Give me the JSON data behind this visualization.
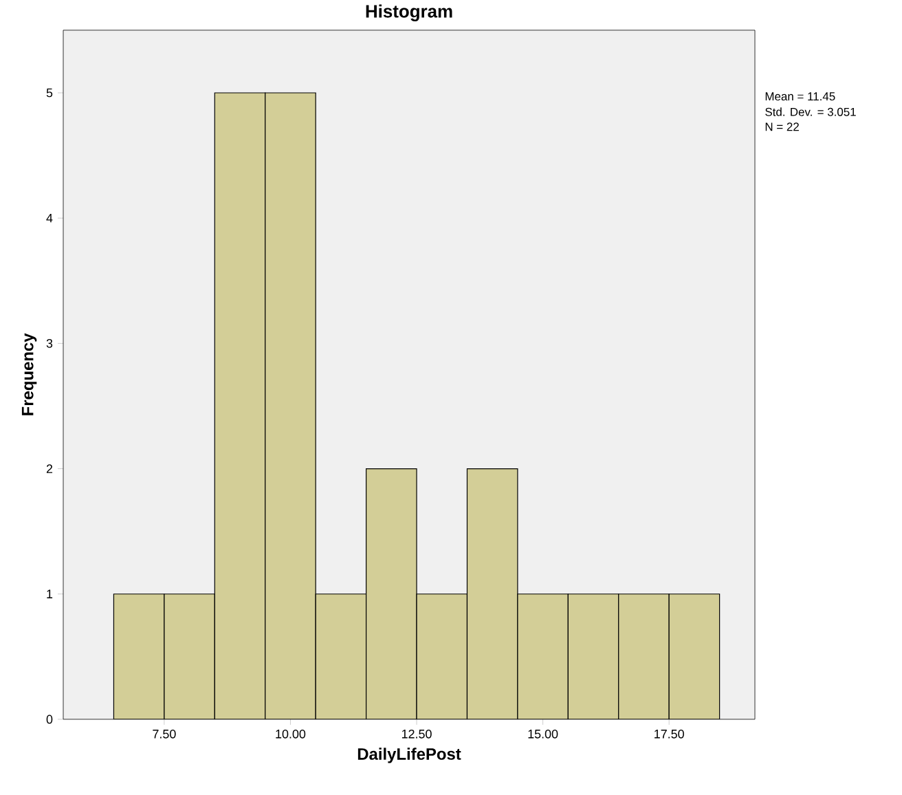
{
  "chart_data": {
    "type": "histogram",
    "title": "Histogram",
    "xlabel": "DailyLifePost",
    "ylabel": "Frequency",
    "bins": [
      6.5,
      7.5,
      8.5,
      9.5,
      10.5,
      11.5,
      12.5,
      13.5,
      14.5,
      15.5,
      16.5,
      17.5,
      18.5
    ],
    "values": [
      1,
      1,
      5,
      5,
      1,
      2,
      1,
      2,
      1,
      1,
      1,
      1
    ],
    "color": "#d3ce97",
    "xlim": [
      5.5,
      19.2
    ],
    "xticks": [
      {
        "value": 7.5,
        "label": "7.50"
      },
      {
        "value": 10,
        "label": "10.00"
      },
      {
        "value": 12.5,
        "label": "12.50"
      },
      {
        "value": 15,
        "label": "15.00"
      },
      {
        "value": 17.5,
        "label": "17.50"
      }
    ],
    "ylim": [
      0,
      5.5
    ],
    "yticks": [
      0,
      1,
      2,
      3,
      4,
      5
    ],
    "grid": false,
    "annotations": [
      "Mean = 11.45",
      "Std. Dev. = 3.051",
      "N = 22"
    ]
  }
}
